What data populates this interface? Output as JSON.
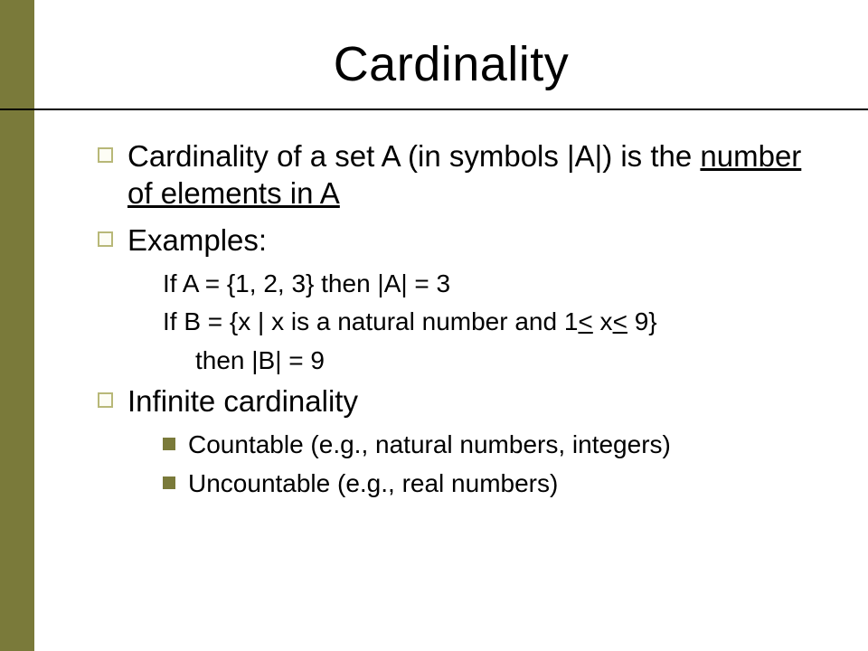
{
  "colors": {
    "sidebar": "#7a7a3a",
    "background": "#ffffff",
    "text": "#000000",
    "bullet_outline": "#b8b878",
    "bullet_solid": "#7a7a3a"
  },
  "typography": {
    "title_fontsize": 54,
    "body_fontsize": 33,
    "sub_fontsize": 28,
    "font_family": "Arial"
  },
  "title": "Cardinality",
  "items": [
    {
      "level": 1,
      "text_pre": "Cardinality of a set A (in symbols |A|) is the ",
      "text_ul": "number of elements in A",
      "text_post": ""
    },
    {
      "level": 1,
      "text": "Examples:"
    },
    {
      "level": "plain",
      "text": "If A = {1, 2, 3} then |A| = 3"
    },
    {
      "level": "plain",
      "html": "If B = {x | x is a natural number and 1<span class=\"ule\">&lt;</span> x<span class=\"ule\">&lt;</span> 9}"
    },
    {
      "level": "plain2",
      "text": "then |B| = 9"
    },
    {
      "level": 1,
      "text": "Infinite cardinality"
    },
    {
      "level": 2,
      "text": "Countable (e.g., natural numbers, integers)"
    },
    {
      "level": 2,
      "text": "Uncountable (e.g., real numbers)"
    }
  ]
}
